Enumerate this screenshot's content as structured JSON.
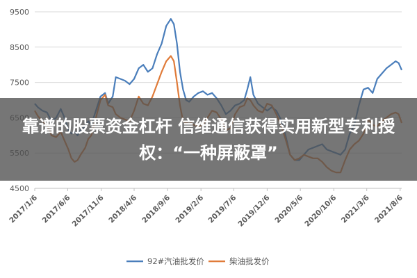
{
  "overlay": {
    "headline": "靠谱的股票资金杠杆 信维通信获得实用新型专利授权：“一种屏蔽罩”"
  },
  "chart_data": {
    "type": "line",
    "title": "",
    "xlabel": "",
    "ylabel": "",
    "ylim": [
      4500,
      9500
    ],
    "yticks": [
      4500,
      5500,
      6500,
      7500,
      8500,
      9500
    ],
    "x_range": [
      "2017-01-06",
      "2021-08-13"
    ],
    "x_ticks": [
      "2017/1/6",
      "2017/6/6",
      "2017/11/6",
      "2018/4/6",
      "2018/9/6",
      "2019/2/6",
      "2019/7/6",
      "2019/12/6",
      "2020/5/6",
      "2020/10/6",
      "2021/3/6",
      "2021/8/6"
    ],
    "grid": "horizontal",
    "legend_position": "bottom",
    "series": [
      {
        "name": "92#汽油批发价",
        "color": "#4a7ebb",
        "points": [
          [
            "2017-01-06",
            6900
          ],
          [
            "2017-01-20",
            6800
          ],
          [
            "2017-02-10",
            6700
          ],
          [
            "2017-03-03",
            6650
          ],
          [
            "2017-03-24",
            6400
          ],
          [
            "2017-04-14",
            6500
          ],
          [
            "2017-05-05",
            6750
          ],
          [
            "2017-05-19",
            6550
          ],
          [
            "2017-06-09",
            6150
          ],
          [
            "2017-06-23",
            6050
          ],
          [
            "2017-07-07",
            6100
          ],
          [
            "2017-07-21",
            6000
          ],
          [
            "2017-08-04",
            6150
          ],
          [
            "2017-08-25",
            6250
          ],
          [
            "2017-09-08",
            6400
          ],
          [
            "2017-09-22",
            6300
          ],
          [
            "2017-10-13",
            6700
          ],
          [
            "2017-11-03",
            7100
          ],
          [
            "2017-11-24",
            7200
          ],
          [
            "2017-12-08",
            6900
          ],
          [
            "2017-12-29",
            7100
          ],
          [
            "2018-01-12",
            7650
          ],
          [
            "2018-02-02",
            7600
          ],
          [
            "2018-02-23",
            7550
          ],
          [
            "2018-03-16",
            7450
          ],
          [
            "2018-04-06",
            7600
          ],
          [
            "2018-04-27",
            7900
          ],
          [
            "2018-05-18",
            8000
          ],
          [
            "2018-06-08",
            7800
          ],
          [
            "2018-06-29",
            7900
          ],
          [
            "2018-07-20",
            8300
          ],
          [
            "2018-08-10",
            8600
          ],
          [
            "2018-08-31",
            9100
          ],
          [
            "2018-09-21",
            9300
          ],
          [
            "2018-10-05",
            9150
          ],
          [
            "2018-10-19",
            8600
          ],
          [
            "2018-11-02",
            7800
          ],
          [
            "2018-11-16",
            7300
          ],
          [
            "2018-11-30",
            7000
          ],
          [
            "2018-12-14",
            6950
          ],
          [
            "2019-01-04",
            7100
          ],
          [
            "2019-01-25",
            7200
          ],
          [
            "2019-02-15",
            7250
          ],
          [
            "2019-03-08",
            7150
          ],
          [
            "2019-03-29",
            7200
          ],
          [
            "2019-04-19",
            7050
          ],
          [
            "2019-05-10",
            6850
          ],
          [
            "2019-05-31",
            6600
          ],
          [
            "2019-06-21",
            6700
          ],
          [
            "2019-07-12",
            6850
          ],
          [
            "2019-08-02",
            6900
          ],
          [
            "2019-08-23",
            7000
          ],
          [
            "2019-09-06",
            7300
          ],
          [
            "2019-09-20",
            7650
          ],
          [
            "2019-10-04",
            7150
          ],
          [
            "2019-10-25",
            6900
          ],
          [
            "2019-11-15",
            6800
          ],
          [
            "2019-12-06",
            6700
          ],
          [
            "2019-12-27",
            6800
          ],
          [
            "2020-01-17",
            6700
          ],
          [
            "2020-02-07",
            6450
          ],
          [
            "2020-02-28",
            6000
          ],
          [
            "2020-03-20",
            5450
          ],
          [
            "2020-04-10",
            5300
          ],
          [
            "2020-05-01",
            5300
          ],
          [
            "2020-05-22",
            5450
          ],
          [
            "2020-06-12",
            5600
          ],
          [
            "2020-07-03",
            5650
          ],
          [
            "2020-07-24",
            5700
          ],
          [
            "2020-08-14",
            5750
          ],
          [
            "2020-09-04",
            5600
          ],
          [
            "2020-09-25",
            5550
          ],
          [
            "2020-10-16",
            5500
          ],
          [
            "2020-11-06",
            5450
          ],
          [
            "2020-11-27",
            5600
          ],
          [
            "2020-12-18",
            6050
          ],
          [
            "2021-01-08",
            6300
          ],
          [
            "2021-01-29",
            6850
          ],
          [
            "2021-02-19",
            7300
          ],
          [
            "2021-03-12",
            7350
          ],
          [
            "2021-04-02",
            7200
          ],
          [
            "2021-04-23",
            7600
          ],
          [
            "2021-05-14",
            7750
          ],
          [
            "2021-06-04",
            7900
          ],
          [
            "2021-06-25",
            8000
          ],
          [
            "2021-07-16",
            8100
          ],
          [
            "2021-07-30",
            8050
          ],
          [
            "2021-08-13",
            7850
          ]
        ]
      },
      {
        "name": "柴油批发价",
        "color": "#e07b39",
        "points": [
          [
            "2017-01-06",
            6700
          ],
          [
            "2017-01-20",
            6550
          ],
          [
            "2017-02-10",
            6400
          ],
          [
            "2017-03-03",
            6300
          ],
          [
            "2017-03-24",
            6000
          ],
          [
            "2017-04-14",
            5950
          ],
          [
            "2017-05-05",
            6100
          ],
          [
            "2017-05-19",
            5900
          ],
          [
            "2017-06-09",
            5600
          ],
          [
            "2017-06-23",
            5350
          ],
          [
            "2017-07-07",
            5250
          ],
          [
            "2017-07-21",
            5300
          ],
          [
            "2017-08-04",
            5450
          ],
          [
            "2017-08-25",
            5650
          ],
          [
            "2017-09-08",
            5900
          ],
          [
            "2017-09-22",
            6000
          ],
          [
            "2017-10-13",
            6500
          ],
          [
            "2017-11-03",
            7000
          ],
          [
            "2017-11-24",
            7150
          ],
          [
            "2017-12-08",
            6850
          ],
          [
            "2017-12-29",
            6800
          ],
          [
            "2018-01-12",
            6600
          ],
          [
            "2018-02-02",
            6500
          ],
          [
            "2018-02-23",
            6450
          ],
          [
            "2018-03-16",
            6400
          ],
          [
            "2018-04-06",
            6700
          ],
          [
            "2018-04-27",
            7100
          ],
          [
            "2018-05-18",
            6900
          ],
          [
            "2018-06-08",
            6850
          ],
          [
            "2018-06-29",
            7100
          ],
          [
            "2018-07-20",
            7450
          ],
          [
            "2018-08-10",
            7800
          ],
          [
            "2018-08-31",
            8100
          ],
          [
            "2018-09-21",
            8250
          ],
          [
            "2018-10-05",
            8100
          ],
          [
            "2018-10-19",
            7500
          ],
          [
            "2018-11-02",
            6850
          ],
          [
            "2018-11-16",
            6400
          ],
          [
            "2018-11-30",
            6350
          ],
          [
            "2018-12-14",
            6400
          ],
          [
            "2019-01-04",
            6300
          ],
          [
            "2019-01-25",
            6250
          ],
          [
            "2019-02-15",
            6300
          ],
          [
            "2019-03-08",
            6500
          ],
          [
            "2019-03-29",
            6700
          ],
          [
            "2019-04-19",
            6650
          ],
          [
            "2019-05-10",
            6450
          ],
          [
            "2019-05-31",
            6150
          ],
          [
            "2019-06-21",
            6200
          ],
          [
            "2019-07-12",
            6600
          ],
          [
            "2019-08-02",
            6800
          ],
          [
            "2019-08-23",
            6850
          ],
          [
            "2019-09-06",
            7050
          ],
          [
            "2019-09-20",
            7000
          ],
          [
            "2019-10-04",
            6850
          ],
          [
            "2019-10-25",
            6700
          ],
          [
            "2019-11-15",
            6650
          ],
          [
            "2019-12-06",
            6900
          ],
          [
            "2019-12-27",
            6850
          ],
          [
            "2020-01-17",
            6600
          ],
          [
            "2020-02-07",
            6300
          ],
          [
            "2020-02-28",
            5900
          ],
          [
            "2020-03-20",
            5450
          ],
          [
            "2020-04-10",
            5300
          ],
          [
            "2020-05-01",
            5350
          ],
          [
            "2020-05-22",
            5450
          ],
          [
            "2020-06-12",
            5400
          ],
          [
            "2020-07-03",
            5350
          ],
          [
            "2020-07-24",
            5350
          ],
          [
            "2020-08-14",
            5250
          ],
          [
            "2020-09-04",
            5100
          ],
          [
            "2020-09-25",
            5000
          ],
          [
            "2020-10-16",
            4950
          ],
          [
            "2020-11-06",
            4950
          ],
          [
            "2020-11-27",
            5300
          ],
          [
            "2020-12-18",
            5600
          ],
          [
            "2021-01-08",
            5750
          ],
          [
            "2021-01-29",
            5850
          ],
          [
            "2021-02-19",
            6050
          ],
          [
            "2021-03-12",
            6450
          ],
          [
            "2021-04-02",
            6300
          ],
          [
            "2021-04-23",
            6250
          ],
          [
            "2021-05-14",
            6400
          ],
          [
            "2021-06-04",
            6500
          ],
          [
            "2021-06-25",
            6600
          ],
          [
            "2021-07-16",
            6650
          ],
          [
            "2021-07-30",
            6600
          ],
          [
            "2021-08-13",
            6350
          ]
        ]
      }
    ]
  }
}
